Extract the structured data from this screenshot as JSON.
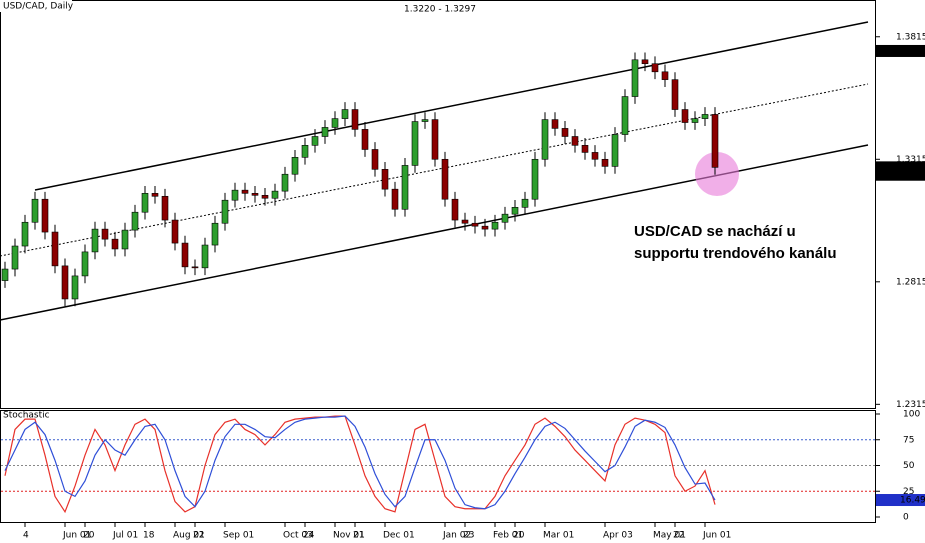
{
  "chart_data": [
    {
      "type": "candlestick",
      "title": "USD/CAD, Daily",
      "subtitle": "1.3220 - 1.3297",
      "annotation": [
        "USD/CAD se nachází u",
        "supportu trendového kanálu"
      ],
      "up_color": "#2e9e2e",
      "down_color": "#8b0000",
      "categories": [
        null,
        null,
        "4",
        null,
        null,
        null,
        "Jun 01",
        null,
        "20",
        null,
        null,
        "Jul 01",
        null,
        null,
        "18",
        null,
        null,
        "Aug 01",
        null,
        "22",
        null,
        null,
        "Sep 01",
        null,
        null,
        null,
        null,
        null,
        "Oct 03",
        null,
        "24",
        null,
        null,
        "Nov 01",
        null,
        "21",
        null,
        null,
        "Dec 01",
        null,
        null,
        null,
        null,
        null,
        "Jan 02",
        null,
        "23",
        null,
        null,
        "Feb 01",
        null,
        "20",
        null,
        null,
        "Mar 01",
        null,
        null,
        null,
        null,
        null,
        "Apr 03",
        null,
        null,
        null,
        null,
        "May 01",
        null,
        "22",
        null,
        null,
        "Jun 01",
        null
      ],
      "open": [
        1.282,
        1.2867,
        1.2961,
        1.3058,
        1.3152,
        1.3018,
        1.288,
        1.2745,
        1.2839,
        1.2937,
        1.303,
        1.2989,
        1.2949,
        1.3026,
        1.3099,
        1.3176,
        1.3164,
        1.3067,
        1.2973,
        1.2876,
        1.2872,
        1.2965,
        1.3054,
        1.3148,
        1.3189,
        1.3176,
        1.3168,
        1.3156,
        1.3185,
        1.3254,
        1.3323,
        1.3372,
        1.3408,
        1.3445,
        1.3481,
        1.3518,
        1.3437,
        1.3355,
        1.3274,
        1.3193,
        1.3111,
        1.329,
        1.3469,
        1.3477,
        1.3315,
        1.3152,
        1.3067,
        1.3054,
        1.3042,
        1.303,
        1.3058,
        1.3091,
        1.3119,
        1.3152,
        1.3315,
        1.3477,
        1.3441,
        1.3408,
        1.3372,
        1.3343,
        1.3315,
        1.3286,
        1.3416,
        1.3571,
        1.3721,
        1.3705,
        1.3672,
        1.364,
        1.3518,
        1.3465,
        1.3481,
        1.3498
      ],
      "high": [
        1.2897,
        1.2991,
        1.3088,
        1.3182,
        1.3182,
        1.3048,
        1.291,
        1.2869,
        1.2967,
        1.306,
        1.306,
        1.3019,
        1.3056,
        1.3129,
        1.3206,
        1.3206,
        1.3194,
        1.3097,
        1.3003,
        1.2906,
        1.2995,
        1.3084,
        1.3178,
        1.3219,
        1.3219,
        1.3206,
        1.3198,
        1.3215,
        1.3284,
        1.3353,
        1.3402,
        1.3438,
        1.3475,
        1.3511,
        1.3548,
        1.3548,
        1.3467,
        1.3385,
        1.3304,
        1.3223,
        1.332,
        1.3499,
        1.3507,
        1.3507,
        1.3345,
        1.3182,
        1.3097,
        1.3084,
        1.3072,
        1.3088,
        1.3121,
        1.3149,
        1.3182,
        1.3345,
        1.3507,
        1.3507,
        1.3471,
        1.3438,
        1.3402,
        1.3373,
        1.3345,
        1.3446,
        1.3601,
        1.3751,
        1.3751,
        1.3735,
        1.3702,
        1.367,
        1.3548,
        1.3511,
        1.3528,
        1.3528
      ],
      "low": [
        1.279,
        1.2837,
        1.2931,
        1.3028,
        1.2988,
        1.285,
        1.2715,
        1.2715,
        1.2809,
        1.2907,
        1.2959,
        1.2919,
        1.2919,
        1.2996,
        1.3069,
        1.3134,
        1.3037,
        1.2943,
        1.2846,
        1.2842,
        1.2842,
        1.2935,
        1.3024,
        1.3118,
        1.3146,
        1.3138,
        1.3126,
        1.3126,
        1.3155,
        1.3224,
        1.3293,
        1.3342,
        1.3378,
        1.3415,
        1.3451,
        1.3407,
        1.3325,
        1.3244,
        1.3163,
        1.3081,
        1.3081,
        1.326,
        1.3439,
        1.3285,
        1.3122,
        1.3037,
        1.3024,
        1.3012,
        1.3,
        1.3,
        1.3028,
        1.3061,
        1.3089,
        1.3122,
        1.3285,
        1.3411,
        1.3378,
        1.3342,
        1.3313,
        1.3285,
        1.3256,
        1.3256,
        1.3386,
        1.3541,
        1.3675,
        1.3642,
        1.361,
        1.3488,
        1.3435,
        1.3435,
        1.3451,
        1.3252
      ],
      "close": [
        1.2867,
        1.2961,
        1.3058,
        1.3152,
        1.3018,
        1.288,
        1.2745,
        1.2839,
        1.2937,
        1.303,
        1.2989,
        1.2949,
        1.3026,
        1.3099,
        1.3176,
        1.3164,
        1.3067,
        1.2973,
        1.2876,
        1.2872,
        1.2965,
        1.3054,
        1.3148,
        1.3189,
        1.3176,
        1.3168,
        1.3156,
        1.3185,
        1.3254,
        1.3323,
        1.3372,
        1.3408,
        1.3445,
        1.3481,
        1.3518,
        1.3437,
        1.3355,
        1.3274,
        1.3193,
        1.3111,
        1.329,
        1.3469,
        1.3477,
        1.3315,
        1.3152,
        1.3067,
        1.3054,
        1.3042,
        1.303,
        1.3058,
        1.3091,
        1.3119,
        1.3152,
        1.3315,
        1.3477,
        1.3441,
        1.3408,
        1.3372,
        1.3343,
        1.3315,
        1.3286,
        1.3416,
        1.3571,
        1.3721,
        1.3705,
        1.3672,
        1.364,
        1.3518,
        1.3465,
        1.3481,
        1.3498,
        1.3282
      ],
      "ylim": [
        1.23,
        1.3965
      ],
      "yticks": [
        1.2315,
        1.2815,
        1.3315,
        1.3815
      ],
      "price_markers": [
        1.3757,
        1.3282,
        1.3252
      ]
    },
    {
      "type": "line",
      "title": "Stochastic",
      "series": [
        {
          "color": "#e8312a",
          "values": [
            40,
            85,
            95,
            95,
            60,
            20,
            5,
            30,
            60,
            85,
            70,
            45,
            70,
            90,
            95,
            85,
            45,
            15,
            5,
            10,
            50,
            80,
            92,
            95,
            85,
            80,
            70,
            80,
            92,
            95,
            96,
            97,
            97,
            98,
            98,
            70,
            40,
            20,
            8,
            5,
            45,
            85,
            90,
            55,
            20,
            10,
            8,
            8,
            8,
            20,
            40,
            55,
            70,
            90,
            96,
            88,
            78,
            65,
            55,
            45,
            35,
            70,
            90,
            96,
            94,
            90,
            82,
            40,
            25,
            30,
            45,
            12
          ]
        },
        {
          "color": "#2f4fd8",
          "values": [
            45,
            65,
            85,
            92,
            80,
            55,
            25,
            20,
            35,
            60,
            75,
            65,
            60,
            75,
            88,
            90,
            75,
            45,
            20,
            10,
            25,
            55,
            78,
            90,
            90,
            85,
            78,
            77,
            85,
            92,
            95,
            96,
            97,
            97,
            98,
            88,
            68,
            42,
            22,
            10,
            20,
            48,
            75,
            75,
            55,
            28,
            12,
            9,
            8,
            12,
            25,
            42,
            58,
            75,
            88,
            92,
            86,
            75,
            64,
            54,
            44,
            50,
            68,
            88,
            94,
            92,
            87,
            70,
            48,
            32,
            33,
            16.49
          ]
        }
      ],
      "ylim": [
        0,
        100
      ],
      "yticks": [
        0,
        25,
        50,
        75,
        100
      ],
      "levels": [
        {
          "value": 75,
          "color": "#3a5fcd"
        },
        {
          "value": 50,
          "color": "#888888"
        },
        {
          "value": 25,
          "color": "#e02020"
        }
      ],
      "value_marker": 16.49
    }
  ]
}
